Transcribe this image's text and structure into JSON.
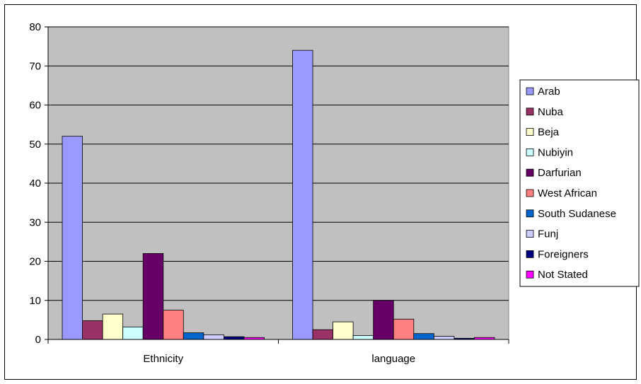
{
  "chart_data": {
    "type": "bar",
    "categories": [
      "Ethnicity",
      "language"
    ],
    "series": [
      {
        "name": "Arab",
        "values": [
          52,
          74
        ],
        "color": "#9999ff"
      },
      {
        "name": "Nuba",
        "values": [
          4.8,
          2.5
        ],
        "color": "#993366"
      },
      {
        "name": "Beja",
        "values": [
          6.5,
          4.5
        ],
        "color": "#ffffcc"
      },
      {
        "name": "Nubiyin",
        "values": [
          3.2,
          1.0
        ],
        "color": "#ccffff"
      },
      {
        "name": "Darfurian",
        "values": [
          22,
          10
        ],
        "color": "#660066"
      },
      {
        "name": "West African",
        "values": [
          7.5,
          5.2
        ],
        "color": "#ff8080"
      },
      {
        "name": "South Sudanese",
        "values": [
          1.7,
          1.5
        ],
        "color": "#0066cc"
      },
      {
        "name": "Funj",
        "values": [
          1.2,
          0.8
        ],
        "color": "#ccccff"
      },
      {
        "name": "Foreigners",
        "values": [
          0.7,
          0.3
        ],
        "color": "#000080"
      },
      {
        "name": "Not Stated",
        "values": [
          0.5,
          0.5
        ],
        "color": "#ff00ff"
      }
    ],
    "ylim": [
      0,
      80
    ],
    "yticks": [
      0,
      10,
      20,
      30,
      40,
      50,
      60,
      70,
      80
    ],
    "grid": true,
    "legend_position": "right",
    "plot_background": "#c0c0c0"
  }
}
